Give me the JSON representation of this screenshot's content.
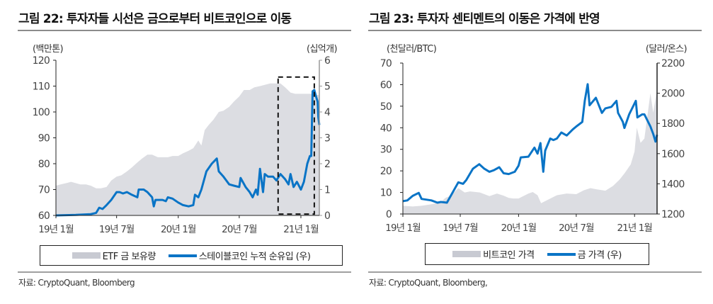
{
  "figures": [
    {
      "title": "그림 22: 투자자들 시선은 금으로부터 비트코인으로 이동",
      "source": "자료: CryptoQuant, Bloomberg",
      "legend": [
        "ETF 금 보유량",
        "스테이블코인 누적 순유입 (우)"
      ]
    },
    {
      "title": "그림 23: 투자자 센티멘트의 이동은 가격에 반영",
      "source": "자료: CryptoQuant, Bloomberg,",
      "legend": [
        "비트코인 가격",
        "금 가격 (우)"
      ]
    }
  ],
  "colors": {
    "area": "#dcdde2",
    "line": "#0a74c6"
  },
  "chart_data": [
    {
      "type": "area+line",
      "title": "그림 22: 투자자들 시선은 금으로부터 비트코인으로 이동",
      "y_left_unit": "(백만톤)",
      "y_right_unit": "(십억개)",
      "ylim_left": [
        60,
        120
      ],
      "yticks_left": [
        "60",
        "70",
        "80",
        "90",
        "100",
        "110",
        "120"
      ],
      "ylim_right": [
        0,
        6
      ],
      "yticks_right": [
        "0",
        "1",
        "2",
        "3",
        "4",
        "5",
        "6"
      ],
      "xtick_labels": [
        "19년 1월",
        "19년 7월",
        "20년 1월",
        "20년 7월",
        "21년 1월"
      ],
      "xtick_dates": [
        "2019-01-01",
        "2019-07-01",
        "2020-01-01",
        "2020-07-01",
        "2021-01-01"
      ],
      "xlim": [
        "2019-01-01",
        "2021-02-25"
      ],
      "highlight_box": {
        "x": [
          "2020-10-25",
          "2021-02-10"
        ],
        "y_right": [
          0.05,
          5.35
        ],
        "style": "dashed"
      },
      "series": [
        {
          "name": "ETF 금 보유량",
          "axis": "left",
          "kind": "area",
          "points": [
            [
              "2019-01-01",
              71.5
            ],
            [
              "2019-01-15",
              72
            ],
            [
              "2019-02-01",
              72.5
            ],
            [
              "2019-02-15",
              73
            ],
            [
              "2019-03-01",
              72.5
            ],
            [
              "2019-03-15",
              72
            ],
            [
              "2019-04-01",
              72
            ],
            [
              "2019-04-15",
              71.5
            ],
            [
              "2019-05-01",
              70.5
            ],
            [
              "2019-05-15",
              70.5
            ],
            [
              "2019-06-01",
              71
            ],
            [
              "2019-06-15",
              73.5
            ],
            [
              "2019-07-01",
              75
            ],
            [
              "2019-07-15",
              75.5
            ],
            [
              "2019-08-01",
              77
            ],
            [
              "2019-08-15",
              78.5
            ],
            [
              "2019-09-01",
              80.5
            ],
            [
              "2019-09-15",
              82
            ],
            [
              "2019-10-01",
              83.5
            ],
            [
              "2019-10-15",
              83.5
            ],
            [
              "2019-11-01",
              82.5
            ],
            [
              "2019-11-15",
              82.5
            ],
            [
              "2019-12-01",
              82.5
            ],
            [
              "2019-12-15",
              83
            ],
            [
              "2020-01-01",
              83
            ],
            [
              "2020-01-15",
              84
            ],
            [
              "2020-02-01",
              85
            ],
            [
              "2020-02-15",
              86
            ],
            [
              "2020-03-01",
              89
            ],
            [
              "2020-03-10",
              87
            ],
            [
              "2020-03-20",
              93
            ],
            [
              "2020-04-01",
              95
            ],
            [
              "2020-04-15",
              97
            ],
            [
              "2020-05-01",
              100
            ],
            [
              "2020-05-15",
              100.5
            ],
            [
              "2020-06-01",
              102
            ],
            [
              "2020-06-15",
              104
            ],
            [
              "2020-07-01",
              106
            ],
            [
              "2020-07-15",
              108.5
            ],
            [
              "2020-08-01",
              108.5
            ],
            [
              "2020-08-15",
              109.5
            ],
            [
              "2020-09-01",
              110
            ],
            [
              "2020-09-15",
              110.5
            ],
            [
              "2020-10-01",
              111
            ],
            [
              "2020-10-15",
              111
            ],
            [
              "2020-11-01",
              111
            ],
            [
              "2020-11-15",
              109.5
            ],
            [
              "2020-12-01",
              107.5
            ],
            [
              "2020-12-15",
              107
            ],
            [
              "2021-01-01",
              107
            ],
            [
              "2021-01-15",
              107
            ],
            [
              "2021-02-01",
              107
            ],
            [
              "2021-02-25",
              106.5
            ]
          ]
        },
        {
          "name": "스테이블코인 누적 순유입 (우)",
          "axis": "right",
          "kind": "line",
          "points": [
            [
              "2019-01-01",
              0
            ],
            [
              "2019-03-01",
              0.02
            ],
            [
              "2019-04-15",
              0.05
            ],
            [
              "2019-05-01",
              0.1
            ],
            [
              "2019-05-10",
              0.3
            ],
            [
              "2019-05-20",
              0.25
            ],
            [
              "2019-06-01",
              0.4
            ],
            [
              "2019-06-15",
              0.6
            ],
            [
              "2019-07-01",
              0.9
            ],
            [
              "2019-07-10",
              0.9
            ],
            [
              "2019-07-20",
              0.85
            ],
            [
              "2019-08-01",
              0.9
            ],
            [
              "2019-08-15",
              0.8
            ],
            [
              "2019-09-01",
              0.7
            ],
            [
              "2019-09-05",
              1.0
            ],
            [
              "2019-09-20",
              1.0
            ],
            [
              "2019-10-01",
              0.9
            ],
            [
              "2019-10-15",
              0.7
            ],
            [
              "2019-10-20",
              0.35
            ],
            [
              "2019-10-25",
              0.6
            ],
            [
              "2019-11-15",
              0.6
            ],
            [
              "2019-11-25",
              0.55
            ],
            [
              "2019-12-01",
              0.7
            ],
            [
              "2019-12-15",
              0.65
            ],
            [
              "2020-01-01",
              0.5
            ],
            [
              "2020-01-15",
              0.4
            ],
            [
              "2020-02-01",
              0.35
            ],
            [
              "2020-02-15",
              0.4
            ],
            [
              "2020-02-20",
              0.8
            ],
            [
              "2020-03-01",
              0.7
            ],
            [
              "2020-03-10",
              1.0
            ],
            [
              "2020-03-25",
              1.7
            ],
            [
              "2020-04-10",
              2.0
            ],
            [
              "2020-04-25",
              2.2
            ],
            [
              "2020-05-01",
              1.7
            ],
            [
              "2020-05-15",
              1.5
            ],
            [
              "2020-06-01",
              1.2
            ],
            [
              "2020-06-15",
              1.15
            ],
            [
              "2020-07-01",
              1.1
            ],
            [
              "2020-07-05",
              1.45
            ],
            [
              "2020-07-20",
              1.1
            ],
            [
              "2020-08-01",
              0.9
            ],
            [
              "2020-08-10",
              0.7
            ],
            [
              "2020-08-20",
              1.0
            ],
            [
              "2020-08-25",
              0.8
            ],
            [
              "2020-09-01",
              1.8
            ],
            [
              "2020-09-10",
              0.9
            ],
            [
              "2020-09-15",
              1.6
            ],
            [
              "2020-09-25",
              1.5
            ],
            [
              "2020-10-10",
              1.5
            ],
            [
              "2020-10-20",
              1.35
            ],
            [
              "2020-11-01",
              1.6
            ],
            [
              "2020-11-15",
              1.4
            ],
            [
              "2020-11-25",
              1.2
            ],
            [
              "2020-12-01",
              1.6
            ],
            [
              "2020-12-10",
              1.1
            ],
            [
              "2020-12-20",
              1.3
            ],
            [
              "2021-01-01",
              1.0
            ],
            [
              "2021-01-10",
              1.3
            ],
            [
              "2021-01-20",
              2.0
            ],
            [
              "2021-01-28",
              2.3
            ],
            [
              "2021-02-01",
              2.3
            ],
            [
              "2021-02-05",
              4.8
            ],
            [
              "2021-02-10",
              4.85
            ],
            [
              "2021-02-15",
              4.6
            ],
            [
              "2021-02-20",
              4.4
            ],
            [
              "2021-02-22",
              3.8
            ],
            [
              "2021-02-25",
              3.5
            ]
          ]
        }
      ]
    },
    {
      "type": "area+line",
      "title": "그림 23: 투자자 센티멘트의 이동은 가격에 반영",
      "y_left_unit": "(천달러/BTC)",
      "y_right_unit": "(달러/온스)",
      "ylim_left": [
        0,
        70
      ],
      "yticks_left": [
        "0",
        "10",
        "20",
        "30",
        "40",
        "50",
        "60",
        "70"
      ],
      "ylim_right": [
        1200,
        2200
      ],
      "yticks_right": [
        "1200",
        "1400",
        "1600",
        "1800",
        "2000",
        "2200"
      ],
      "xtick_labels": [
        "19년 1월",
        "19년 7월",
        "20년 1월",
        "20년 7월",
        "21년 1월"
      ],
      "xtick_dates": [
        "2019-01-01",
        "2019-07-01",
        "2020-01-01",
        "2020-07-01",
        "2021-01-01"
      ],
      "xlim": [
        "2019-01-01",
        "2021-03-13"
      ],
      "series": [
        {
          "name": "비트코인 가격",
          "axis": "left",
          "kind": "area",
          "points": [
            [
              "2019-01-01",
              3.8
            ],
            [
              "2019-02-01",
              3.5
            ],
            [
              "2019-03-01",
              3.8
            ],
            [
              "2019-04-01",
              4.5
            ],
            [
              "2019-05-01",
              5.5
            ],
            [
              "2019-05-15",
              7.5
            ],
            [
              "2019-06-01",
              8.5
            ],
            [
              "2019-06-25",
              12
            ],
            [
              "2019-07-15",
              10
            ],
            [
              "2019-08-01",
              10.5
            ],
            [
              "2019-09-01",
              10
            ],
            [
              "2019-10-01",
              8.3
            ],
            [
              "2019-10-25",
              9.5
            ],
            [
              "2019-11-15",
              8.5
            ],
            [
              "2019-12-01",
              7.5
            ],
            [
              "2019-12-15",
              7.2
            ],
            [
              "2020-01-01",
              7.2
            ],
            [
              "2020-02-01",
              9.5
            ],
            [
              "2020-02-15",
              10.2
            ],
            [
              "2020-03-01",
              8.7
            ],
            [
              "2020-03-12",
              5
            ],
            [
              "2020-04-01",
              6.5
            ],
            [
              "2020-05-01",
              8.7
            ],
            [
              "2020-06-01",
              9.5
            ],
            [
              "2020-07-01",
              9.2
            ],
            [
              "2020-07-25",
              11
            ],
            [
              "2020-08-15",
              12
            ],
            [
              "2020-09-01",
              11.5
            ],
            [
              "2020-10-01",
              10.8
            ],
            [
              "2020-10-25",
              13
            ],
            [
              "2020-11-15",
              16
            ],
            [
              "2020-12-01",
              19
            ],
            [
              "2020-12-20",
              23
            ],
            [
              "2021-01-01",
              29
            ],
            [
              "2021-01-08",
              40
            ],
            [
              "2021-01-20",
              33
            ],
            [
              "2021-02-01",
              35
            ],
            [
              "2021-02-10",
              45
            ],
            [
              "2021-02-20",
              56
            ],
            [
              "2021-03-01",
              47
            ],
            [
              "2021-03-13",
              58
            ]
          ]
        },
        {
          "name": "금 가격 (우)",
          "axis": "right",
          "kind": "line",
          "points": [
            [
              "2019-01-01",
              1285
            ],
            [
              "2019-01-15",
              1290
            ],
            [
              "2019-02-01",
              1320
            ],
            [
              "2019-02-20",
              1340
            ],
            [
              "2019-03-01",
              1300
            ],
            [
              "2019-04-01",
              1290
            ],
            [
              "2019-04-20",
              1275
            ],
            [
              "2019-05-01",
              1280
            ],
            [
              "2019-05-20",
              1275
            ],
            [
              "2019-06-01",
              1320
            ],
            [
              "2019-06-25",
              1410
            ],
            [
              "2019-07-10",
              1400
            ],
            [
              "2019-07-20",
              1425
            ],
            [
              "2019-08-10",
              1500
            ],
            [
              "2019-08-30",
              1530
            ],
            [
              "2019-09-15",
              1500
            ],
            [
              "2019-10-01",
              1480
            ],
            [
              "2019-10-15",
              1490
            ],
            [
              "2019-11-01",
              1510
            ],
            [
              "2019-11-15",
              1470
            ],
            [
              "2019-12-01",
              1465
            ],
            [
              "2019-12-20",
              1480
            ],
            [
              "2020-01-01",
              1520
            ],
            [
              "2020-01-08",
              1575
            ],
            [
              "2020-02-01",
              1580
            ],
            [
              "2020-02-20",
              1640
            ],
            [
              "2020-03-01",
              1600
            ],
            [
              "2020-03-10",
              1670
            ],
            [
              "2020-03-19",
              1480
            ],
            [
              "2020-03-25",
              1620
            ],
            [
              "2020-04-10",
              1700
            ],
            [
              "2020-04-20",
              1690
            ],
            [
              "2020-05-01",
              1700
            ],
            [
              "2020-05-15",
              1740
            ],
            [
              "2020-06-01",
              1720
            ],
            [
              "2020-06-20",
              1760
            ],
            [
              "2020-07-01",
              1780
            ],
            [
              "2020-07-20",
              1810
            ],
            [
              "2020-07-28",
              1950
            ],
            [
              "2020-08-06",
              2060
            ],
            [
              "2020-08-12",
              1920
            ],
            [
              "2020-08-20",
              1940
            ],
            [
              "2020-09-01",
              1970
            ],
            [
              "2020-09-20",
              1870
            ],
            [
              "2020-10-01",
              1900
            ],
            [
              "2020-10-20",
              1910
            ],
            [
              "2020-11-05",
              1950
            ],
            [
              "2020-11-10",
              1870
            ],
            [
              "2020-11-25",
              1810
            ],
            [
              "2020-11-30",
              1770
            ],
            [
              "2020-12-15",
              1860
            ],
            [
              "2021-01-05",
              1950
            ],
            [
              "2021-01-10",
              1840
            ],
            [
              "2021-01-25",
              1860
            ],
            [
              "2021-02-01",
              1860
            ],
            [
              "2021-02-20",
              1780
            ],
            [
              "2021-03-01",
              1730
            ],
            [
              "2021-03-08",
              1680
            ],
            [
              "2021-03-13",
              1725
            ]
          ]
        }
      ]
    }
  ]
}
